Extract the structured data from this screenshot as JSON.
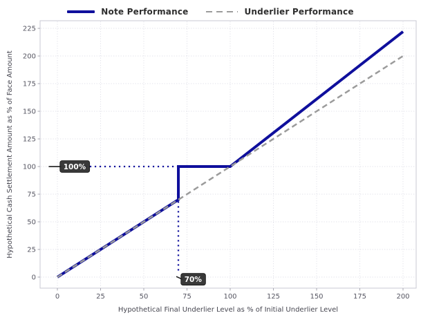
{
  "legend": {
    "items": [
      {
        "label": "Note Performance",
        "color": "#0f0f9c",
        "line_style": "solid"
      },
      {
        "label": "Underlier Performance",
        "color": "#9b9b9b",
        "line_style": "dashed"
      }
    ]
  },
  "chart_data": {
    "type": "line",
    "title": "",
    "xlabel": "Hypothetical Final Underlier Level as % of Initial Underlier Level",
    "ylabel": "Hypothetical Cash Settlement Amount as % of Face Amount",
    "xlim": [
      -10,
      207.6
    ],
    "ylim": [
      -10,
      231.9
    ],
    "xticks": [
      0,
      25,
      50,
      75,
      100,
      125,
      150,
      175,
      200
    ],
    "yticks": [
      0,
      25,
      50,
      75,
      100,
      125,
      150,
      175,
      200,
      225
    ],
    "grid": true,
    "legend_position": "top-center",
    "series": [
      {
        "name": "Note Performance",
        "color": "#0f0f9c",
        "width": 4,
        "dash": null,
        "points": [
          [
            0,
            0
          ],
          [
            70,
            70
          ],
          [
            70,
            100
          ],
          [
            100,
            100
          ],
          [
            200,
            222
          ]
        ]
      },
      {
        "name": "Underlier Performance",
        "color": "#9b9b9b",
        "width": 2.5,
        "dash": "8 5",
        "points": [
          [
            0,
            0
          ],
          [
            200,
            200
          ]
        ]
      }
    ],
    "reference_lines": [
      {
        "name": "buffer-payout-level",
        "from": [
          16,
          100
        ],
        "to": [
          69.5,
          100
        ],
        "color": "#0f0f9c"
      },
      {
        "name": "buffer-threshold-level",
        "from": [
          70,
          68.5
        ],
        "to": [
          70,
          4.5
        ],
        "color": "#0f0f9c"
      }
    ],
    "annotations": [
      {
        "label": "100%",
        "point": [
          -5,
          100
        ],
        "box_left": 1.5,
        "box_center_y": 100
      },
      {
        "label": "70%",
        "point": [
          68.8,
          0.5
        ],
        "box_left": 71.5,
        "box_center_y": -2
      }
    ],
    "colors": {
      "frame": "#c9c9d3",
      "grid": "#e1e1e9",
      "tick": "#a6a6b0",
      "tick_label": "#555561",
      "axis_label": "#45454f",
      "legend_text": "#2e2e2e",
      "annotation_bg": "#2a2a2a",
      "annotation_text": "#ffffff"
    }
  }
}
